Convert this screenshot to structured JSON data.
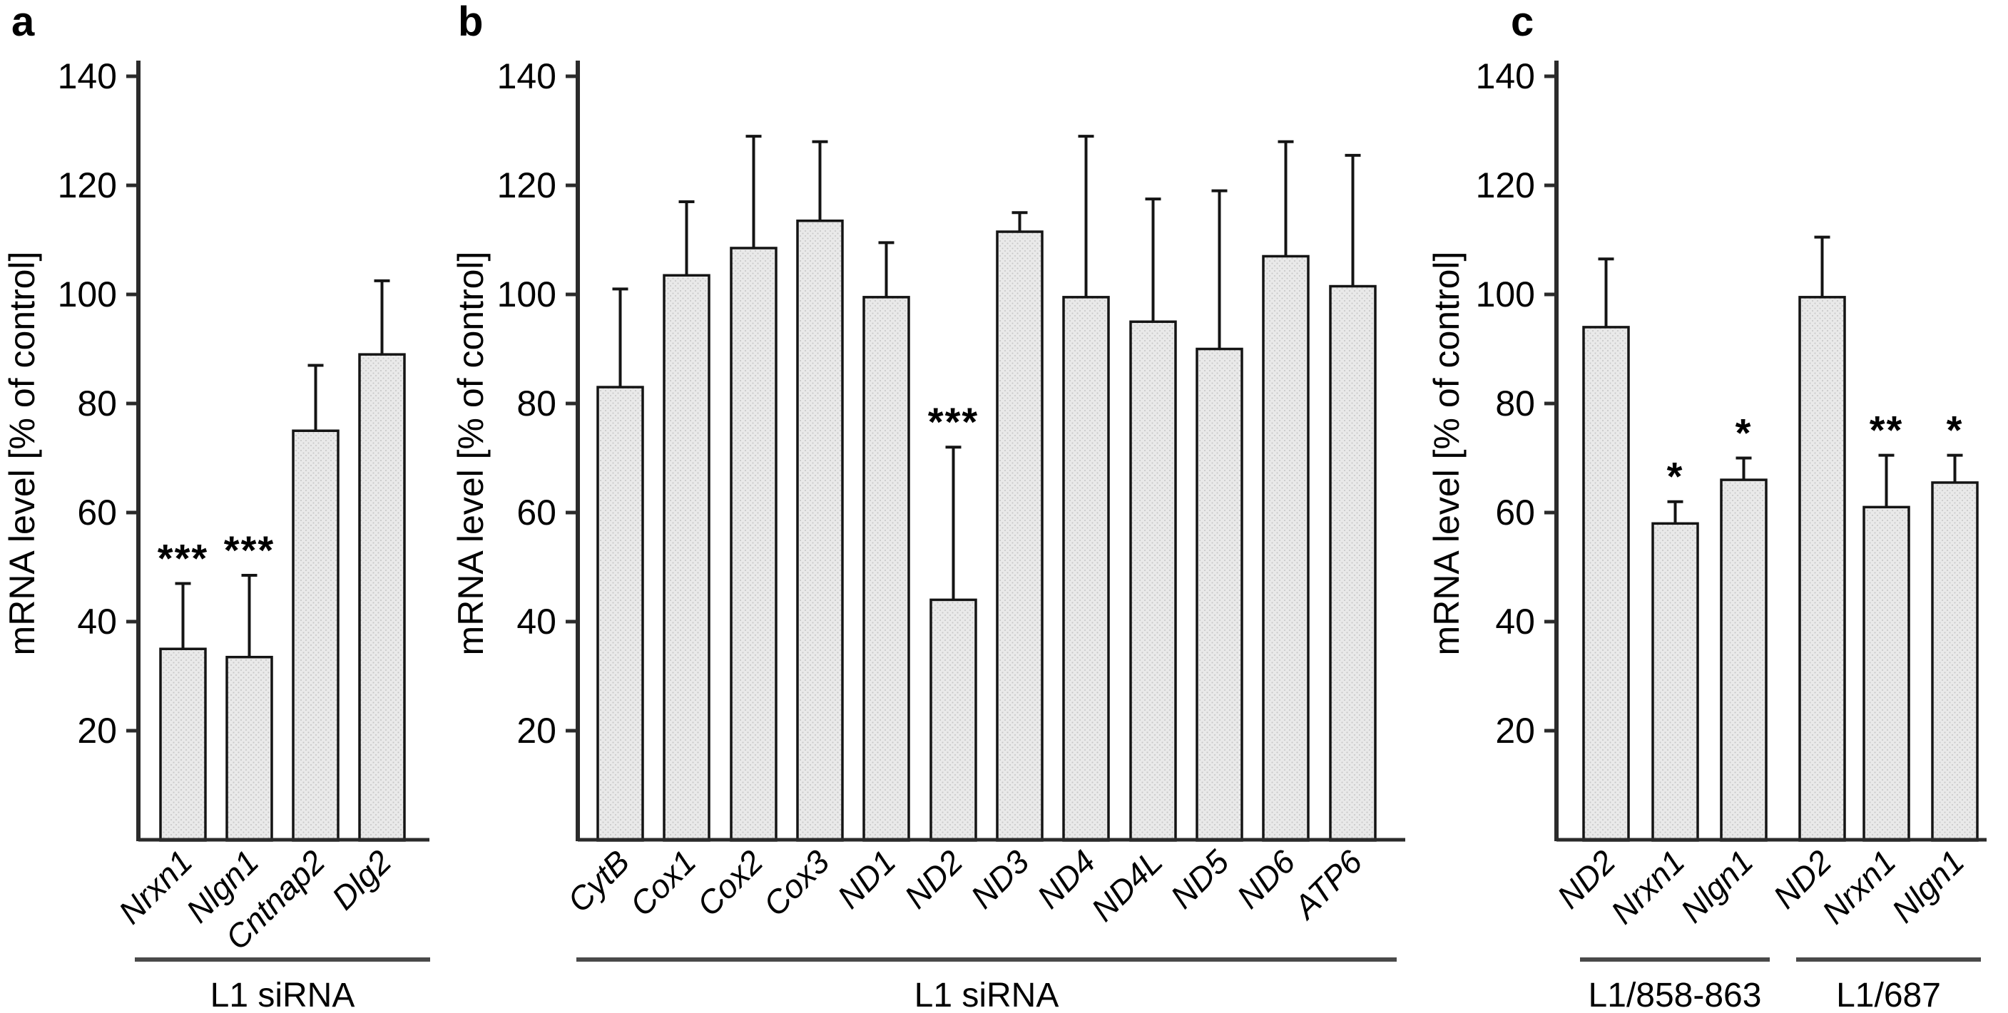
{
  "figure_description": "Three-panel bar figure of mRNA levels after siRNA treatment",
  "colors": {
    "bar_fill": "#e9e9e9",
    "bar_dot": "#c6c6c6",
    "bar_stroke": "#141414",
    "axis_stroke": "#2b2b2b",
    "underline_stroke": "#4a4a4a",
    "text": "#000000",
    "background": "#ffffff"
  },
  "chart_data": [
    {
      "type": "bar",
      "panel": "a",
      "title": "",
      "ylabel": "mRNA level [% of control]",
      "xlabel": "",
      "yticks": [
        20,
        40,
        60,
        80,
        100,
        120,
        140
      ],
      "ylim": [
        0,
        145
      ],
      "grid": false,
      "legend": false,
      "categories": [
        "Nrxn1",
        "Nlgn1",
        "Cntnap2",
        "Dlg2"
      ],
      "values": [
        35,
        33.5,
        75,
        89
      ],
      "errors_up": [
        12,
        15,
        12,
        13.5
      ],
      "significance": [
        "***",
        "***",
        "",
        ""
      ],
      "group_labels": [
        {
          "label": "L1 siRNA",
          "start": 0,
          "end": 4
        }
      ]
    },
    {
      "type": "bar",
      "panel": "b",
      "title": "",
      "ylabel": "mRNA level [% of control]",
      "xlabel": "",
      "yticks": [
        20,
        40,
        60,
        80,
        100,
        120,
        140
      ],
      "ylim": [
        0,
        145
      ],
      "grid": false,
      "legend": false,
      "categories": [
        "CytB",
        "Cox1",
        "Cox2",
        "Cox3",
        "ND1",
        "ND2",
        "ND3",
        "ND4",
        "ND4L",
        "ND5",
        "ND6",
        "ATP6"
      ],
      "values": [
        83,
        103.5,
        108.5,
        113.5,
        99.5,
        44,
        111.5,
        99.5,
        95,
        90,
        107,
        101.5
      ],
      "errors_up": [
        18,
        13.5,
        20.5,
        14.5,
        10,
        28,
        3.5,
        29.5,
        22.5,
        29,
        21,
        24
      ],
      "significance": [
        "",
        "",
        "",
        "",
        "",
        "***",
        "",
        "",
        "",
        "",
        "",
        ""
      ],
      "group_labels": [
        {
          "label": "L1 siRNA",
          "start": 0,
          "end": 12
        }
      ]
    },
    {
      "type": "bar",
      "panel": "c",
      "title": "",
      "ylabel": "mRNA level [% of control]",
      "xlabel": "",
      "yticks": [
        20,
        40,
        60,
        80,
        100,
        120,
        140
      ],
      "ylim": [
        0,
        145
      ],
      "grid": false,
      "legend": false,
      "categories": [
        "ND2",
        "Nrxn1",
        "Nlgn1",
        "ND2",
        "Nrxn1",
        "Nlgn1"
      ],
      "values": [
        94,
        58,
        66,
        99.5,
        61,
        65.5
      ],
      "errors_up": [
        12.5,
        4,
        4,
        11,
        9.5,
        5
      ],
      "significance": [
        "",
        "*",
        "*",
        "",
        "**",
        "*"
      ],
      "group_labels": [
        {
          "label": "L1/858-863",
          "start": 0,
          "end": 3
        },
        {
          "label": "L1/687",
          "start": 3,
          "end": 6
        }
      ]
    }
  ]
}
